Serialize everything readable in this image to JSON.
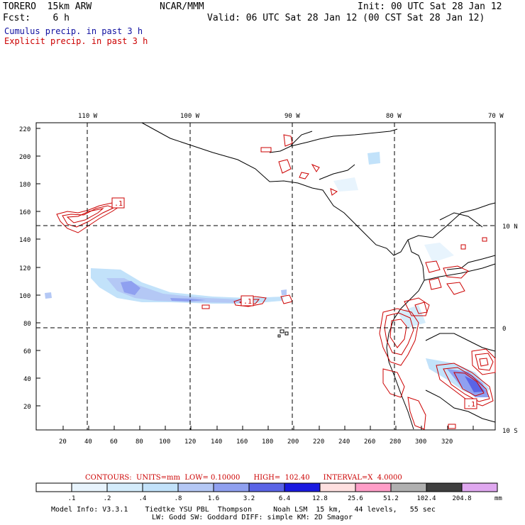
{
  "header": {
    "model": "TORERO  15km ARW",
    "org": "NCAR/MMM",
    "init": "Init: 00 UTC Sat 28 Jan 12",
    "fcst": "Fcst:    6 h",
    "valid": "Valid: 06 UTC Sat 28 Jan 12 (00 CST Sat 28 Jan 12)",
    "cumulus_label": "Cumulus precip. in past 3 h",
    "explicit_label": "Explicit precip. in past 3 h",
    "cumulus_color": "#1010a0",
    "explicit_color": "#cc0000"
  },
  "map": {
    "lon_labels": [
      "110 W",
      "100 W",
      "90 W",
      "80 W",
      "70 W"
    ],
    "lat_labels": [
      "10 N",
      "0",
      "10 S"
    ],
    "x_ticks": [
      "20",
      "40",
      "60",
      "80",
      "100",
      "120",
      "140",
      "160",
      "180",
      "200",
      "220",
      "240",
      "260",
      "280",
      "300",
      "320"
    ],
    "y_ticks": [
      "220",
      "200",
      "180",
      "160",
      "140",
      "120",
      "100",
      "80",
      "60",
      "40",
      "20"
    ],
    "contour_markers": [
      ".1",
      ".1",
      ".1"
    ]
  },
  "contours_info": {
    "text": "CONTOURS:  UNITS=mm  LOW= 0.10000      HIGH=  102.40      INTERVAL=X  4.0000"
  },
  "colorbar": {
    "ticks": [
      ".1",
      ".2",
      ".4",
      ".8",
      "1.6",
      "3.2",
      "6.4",
      "12.8",
      "25.6",
      "51.2",
      "102.4",
      "204.8"
    ],
    "unit": "mm",
    "colors": [
      "#ffffff",
      "#e8f4fd",
      "#d4ecfb",
      "#c2e2fa",
      "#b4c8f5",
      "#8fa0f0",
      "#5a64e6",
      "#1a1ae0",
      "#ffe0e0",
      "#ff9ec8",
      "#b0b0b0",
      "#404040",
      "#e0a8f0"
    ]
  },
  "footer": {
    "line1": "Model Info: V3.3.1    Tiedtke YSU PBL  Thompson     Noah LSM  15 km,   44 levels,   55 sec",
    "line2": "LW: Godd SW: Goddard DIFF: simple KM: 2D Smagor"
  }
}
